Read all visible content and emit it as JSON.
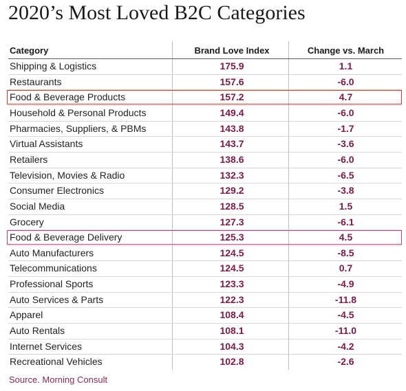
{
  "chart_data": {
    "type": "table",
    "title": "2020’s Most Loved B2C Categories",
    "columns": [
      "Category",
      "Brand Love Index",
      "Change vs. March"
    ],
    "rows": [
      {
        "category": "Shipping & Logistics",
        "index": "175.9",
        "change": "1.1"
      },
      {
        "category": "Restaurants",
        "index": "157.6",
        "change": "-6.0"
      },
      {
        "category": "Food & Beverage Products",
        "index": "157.2",
        "change": "4.7",
        "highlight": "#c0392b"
      },
      {
        "category": "Household & Personal Products",
        "index": "149.4",
        "change": "-6.0"
      },
      {
        "category": "Pharmacies, Suppliers, & PBMs",
        "index": "143.8",
        "change": "-1.7"
      },
      {
        "category": "Virtual Assistants",
        "index": "143.7",
        "change": "-3.6"
      },
      {
        "category": "Retailers",
        "index": "138.6",
        "change": "-6.0"
      },
      {
        "category": "Television, Movies & Radio",
        "index": "132.3",
        "change": "-6.5"
      },
      {
        "category": "Consumer Electronics",
        "index": "129.2",
        "change": "-3.8"
      },
      {
        "category": "Social Media",
        "index": "128.5",
        "change": "1.5"
      },
      {
        "category": "Grocery",
        "index": "127.3",
        "change": "-6.1"
      },
      {
        "category": "Food & Beverage Delivery",
        "index": "125.3",
        "change": "4.5",
        "highlight": "#c2407a"
      },
      {
        "category": "Auto Manufacturers",
        "index": "124.5",
        "change": "-8.5"
      },
      {
        "category": "Telecommunications",
        "index": "124.5",
        "change": "0.7"
      },
      {
        "category": "Professional Sports",
        "index": "123.3",
        "change": "-4.9"
      },
      {
        "category": "Auto Services & Parts",
        "index": "122.3",
        "change": "-11.8"
      },
      {
        "category": "Apparel",
        "index": "108.4",
        "change": "-4.5"
      },
      {
        "category": "Auto Rentals",
        "index": "108.1",
        "change": "-11.0"
      },
      {
        "category": "Internet Services",
        "index": "104.3",
        "change": "-4.2"
      },
      {
        "category": "Recreational Vehicles",
        "index": "102.8",
        "change": "-2.6"
      }
    ],
    "source": "Source. Morning Consult",
    "value_color": "#7a1a48"
  }
}
